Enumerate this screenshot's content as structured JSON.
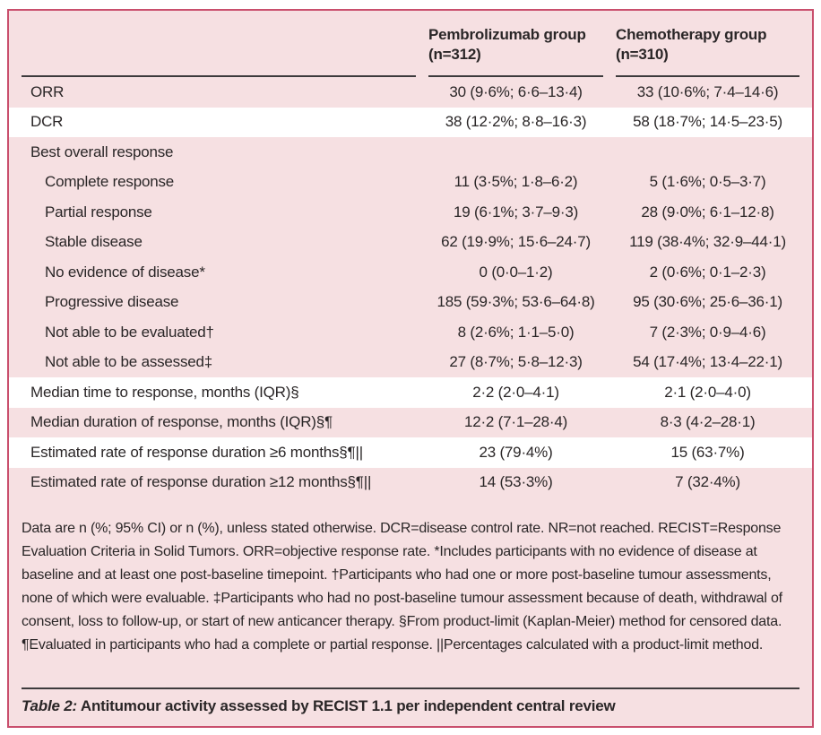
{
  "table": {
    "header": {
      "group1_line1": "Pembrolizumab group",
      "group1_line2": "(n=312)",
      "group2_line1": "Chemotherapy group",
      "group2_line2": "(n=310)"
    },
    "rows": [
      {
        "label": "ORR",
        "v1": "30 (9·6%; 6·6–13·4)",
        "v2": "33 (10·6%; 7·4–14·6)"
      },
      {
        "label": "DCR",
        "v1": "38 (12·2%; 8·8–16·3)",
        "v2": "58 (18·7%; 14·5–23·5)"
      },
      {
        "label": "Best overall response",
        "v1": "",
        "v2": ""
      },
      {
        "label": "Complete response",
        "v1": "11 (3·5%; 1·8–6·2)",
        "v2": "5 (1·6%; 0·5–3·7)"
      },
      {
        "label": "Partial response",
        "v1": "19 (6·1%; 3·7–9·3)",
        "v2": "28 (9·0%; 6·1–12·8)"
      },
      {
        "label": "Stable disease",
        "v1": "62 (19·9%; 15·6–24·7)",
        "v2": "119 (38·4%; 32·9–44·1)"
      },
      {
        "label": "No evidence of disease*",
        "v1": "0 (0·0–1·2)",
        "v2": "2 (0·6%; 0·1–2·3)"
      },
      {
        "label": "Progressive disease",
        "v1": "185 (59·3%; 53·6–64·8)",
        "v2": "95 (30·6%; 25·6–36·1)"
      },
      {
        "label": "Not able to be evaluated†",
        "v1": "8 (2·6%; 1·1–5·0)",
        "v2": "7 (2·3%; 0·9–4·6)"
      },
      {
        "label": "Not able to be assessed‡",
        "v1": "27 (8·7%; 5·8–12·3)",
        "v2": "54 (17·4%; 13·4–22·1)"
      },
      {
        "label": "Median time to response, months (IQR)§",
        "v1": "2·2 (2·0–4·1)",
        "v2": "2·1 (2·0–4·0)"
      },
      {
        "label": "Median duration of response, months (IQR)§¶",
        "v1": "12·2 (7·1–28·4)",
        "v2": "8·3 (4·2–28·1)"
      },
      {
        "label": "Estimated rate of response duration ≥6 months§¶||",
        "v1": "23 (79·4%)",
        "v2": "15 (63·7%)"
      },
      {
        "label": "Estimated rate of response duration ≥12 months§¶||",
        "v1": "14 (53·3%)",
        "v2": "7 (32·4%)"
      }
    ],
    "footnote": "Data are n (%; 95% CI) or n (%), unless stated otherwise. DCR=disease control rate. NR=not reached. RECIST=Response Evaluation Criteria in Solid Tumors. ORR=objective response rate. *Includes participants with no evidence of disease at baseline and at least one post-baseline timepoint. †Participants who had one or more post-baseline tumour assessments, none of which were evaluable. ‡Participants who had no post-baseline tumour assessment because of death, withdrawal of consent, loss to follow-up, or start of new anticancer therapy. §From product-limit (Kaplan-Meier) method for censored data. ¶Evaluated in participants who had a complete or partial response. ||Percentages calculated with a product-limit method.",
    "caption_prefix": "Table 2:",
    "caption_text": " Antitumour activity assessed by RECIST 1.1 per independent central review"
  },
  "colors": {
    "frame_background": "#f6e0e2",
    "frame_border": "#c94f6d",
    "rule": "#3d3b3c",
    "highlight_row": "#ffffff"
  }
}
